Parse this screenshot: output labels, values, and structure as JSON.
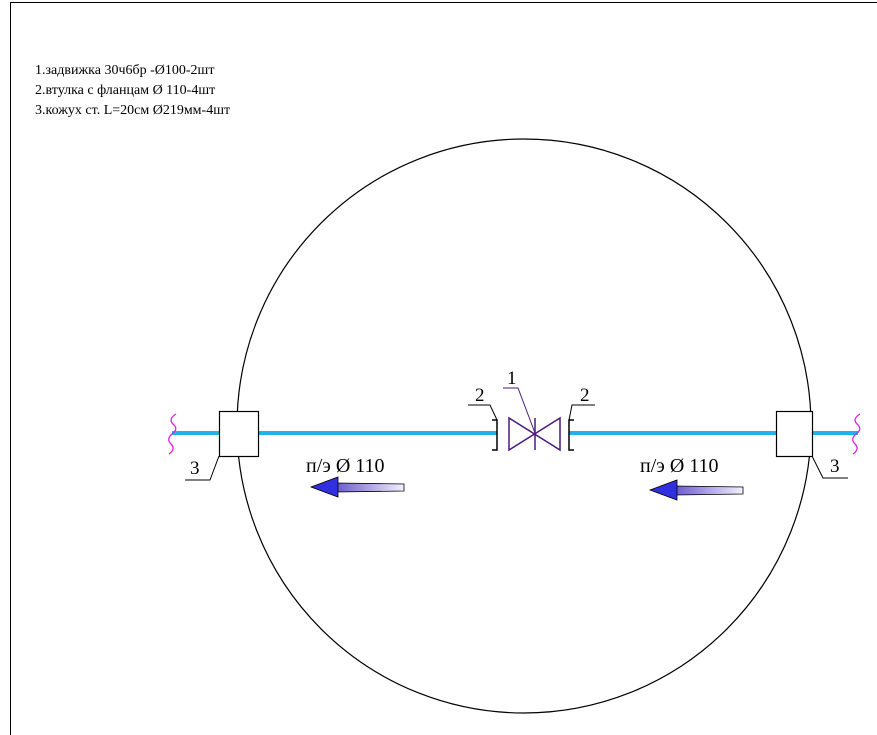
{
  "notes": [
    "1.задвижка 30ч6бр -Ø100-2шт",
    "2.втулка с фланцам Ø 110-4шт",
    "3.кожух ст. L=20см Ø219мм-4шт"
  ],
  "labels": {
    "valve": "1",
    "flange_left": "2",
    "flange_right": "2",
    "casing_left": "3",
    "casing_right": "3"
  },
  "pipe_left": "п/э Ø 110",
  "pipe_right": "п/э Ø 110"
}
